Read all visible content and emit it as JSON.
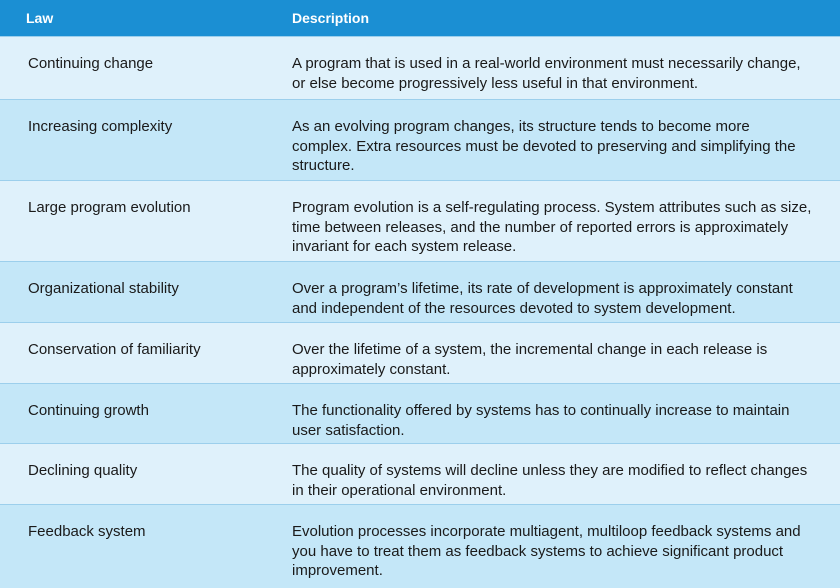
{
  "header": {
    "law": "Law",
    "description": "Description"
  },
  "rows": [
    {
      "law": "Continuing change",
      "description": "A program that is used in a real-world environment must necessarily change, or else become progressively less useful in that environment."
    },
    {
      "law": "Increasing complexity",
      "description": "As an evolving program changes, its structure tends to become more complex. Extra resources must be devoted to preserving and simplifying the structure."
    },
    {
      "law": "Large program evolution",
      "description": "Program evolution is a self-regulating process. System attributes such as size, time between releases, and the number of reported errors is approximately invariant for each system release."
    },
    {
      "law": "Organizational stability",
      "description": "Over a program’s lifetime, its rate of development is approximately constant and independent of the resources devoted to system development."
    },
    {
      "law": "Conservation of familiarity",
      "description": "Over the lifetime of a system, the incremental change in each release is approximately constant."
    },
    {
      "law": "Continuing growth",
      "description": "The functionality offered by systems has to continually increase to maintain user satisfaction."
    },
    {
      "law": "Declining quality",
      "description": "The quality of systems will decline unless they are modified to reflect changes in their operational environment."
    },
    {
      "law": "Feedback system",
      "description": "Evolution processes incorporate multiagent, multiloop feedback systems and you have to treat them as feedback systems to achieve significant product improvement."
    }
  ],
  "colors": {
    "header_bg": "#1b8fd3",
    "row_light": "#dff1fb",
    "row_dark": "#c4e7f8",
    "divider": "#9ccfec"
  }
}
